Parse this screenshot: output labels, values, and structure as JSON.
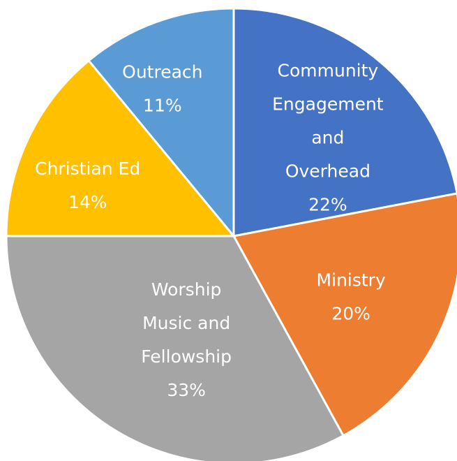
{
  "chart_data": {
    "type": "pie",
    "title": "",
    "start_direction": "top",
    "direction": "clockwise",
    "series": [
      {
        "categories": [
          "Community Engagement and Overhead",
          "Ministry",
          "Worship Music and Fellowship",
          "Christian Ed",
          "Outreach"
        ],
        "values": [
          22,
          20,
          33,
          14,
          11
        ],
        "value_labels": [
          "22%",
          "20%",
          "33%",
          "14%",
          "11%"
        ],
        "label_lines": [
          [
            "Community",
            "Engagement",
            "and",
            "Overhead",
            "22%"
          ],
          [
            "Ministry",
            "20%"
          ],
          [
            "Worship",
            "Music and",
            "Fellowship",
            "33%"
          ],
          [
            "Christian Ed",
            "14%"
          ],
          [
            "Outreach",
            "11%"
          ]
        ],
        "colors": [
          "#4472C4",
          "#ED7D31",
          "#A5A5A5",
          "#FFC000",
          "#5B9BD5"
        ]
      }
    ],
    "legend": "none",
    "grid": false
  }
}
